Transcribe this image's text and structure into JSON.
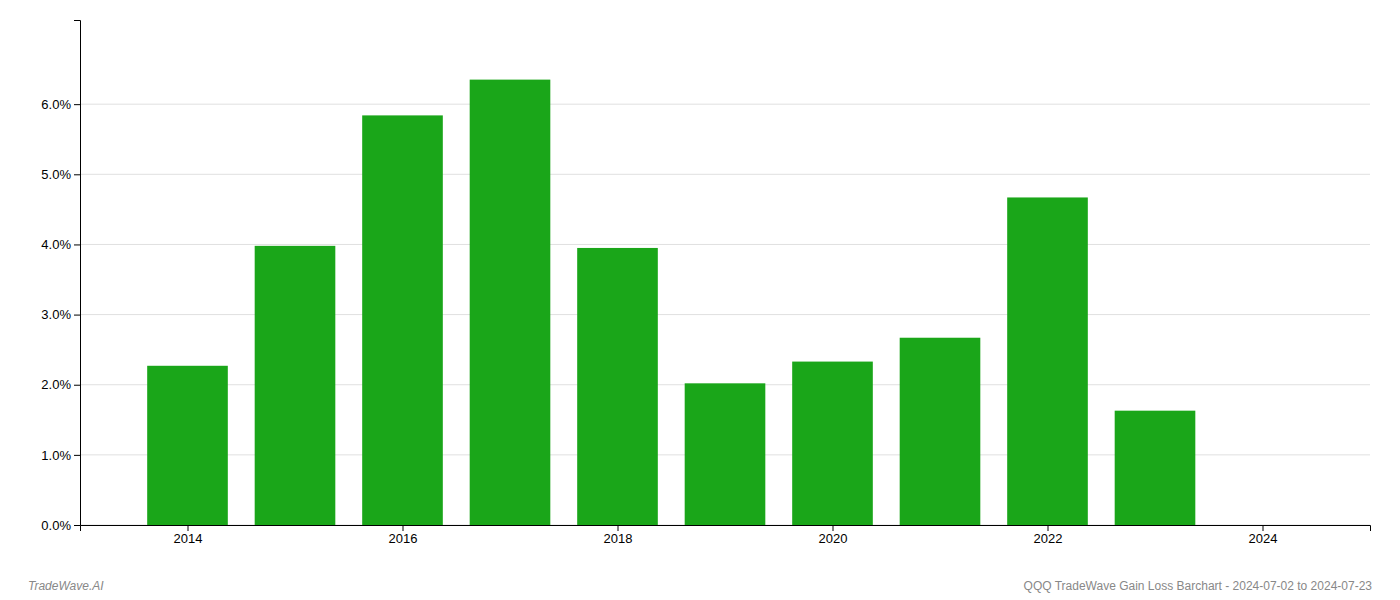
{
  "chart_data": {
    "type": "bar",
    "x": [
      2014,
      2015,
      2016,
      2017,
      2018,
      2019,
      2020,
      2021,
      2022,
      2023
    ],
    "values": [
      0.0227,
      0.0398,
      0.0584,
      0.0635,
      0.0395,
      0.0202,
      0.0233,
      0.0267,
      0.0467,
      0.0163
    ],
    "color": "#1aa619",
    "xlim": [
      2013.0,
      2025.0
    ],
    "xticks": [
      2014,
      2016,
      2018,
      2020,
      2022,
      2024
    ],
    "ylim": [
      0.0,
      0.072
    ],
    "yticks": [
      {
        "value": 0.0,
        "label": "0.0%"
      },
      {
        "value": 0.01,
        "label": "1.0%"
      },
      {
        "value": 0.02,
        "label": "2.0%"
      },
      {
        "value": 0.03,
        "label": "3.0%"
      },
      {
        "value": 0.04,
        "label": "4.0%"
      },
      {
        "value": 0.05,
        "label": "5.0%"
      },
      {
        "value": 0.06,
        "label": "6.0%"
      }
    ],
    "grid": true,
    "annotations": [
      "TradeWave.AI",
      "QQQ TradeWave Gain Loss Barchart - 2024-07-02 to 2024-07-23"
    ]
  }
}
